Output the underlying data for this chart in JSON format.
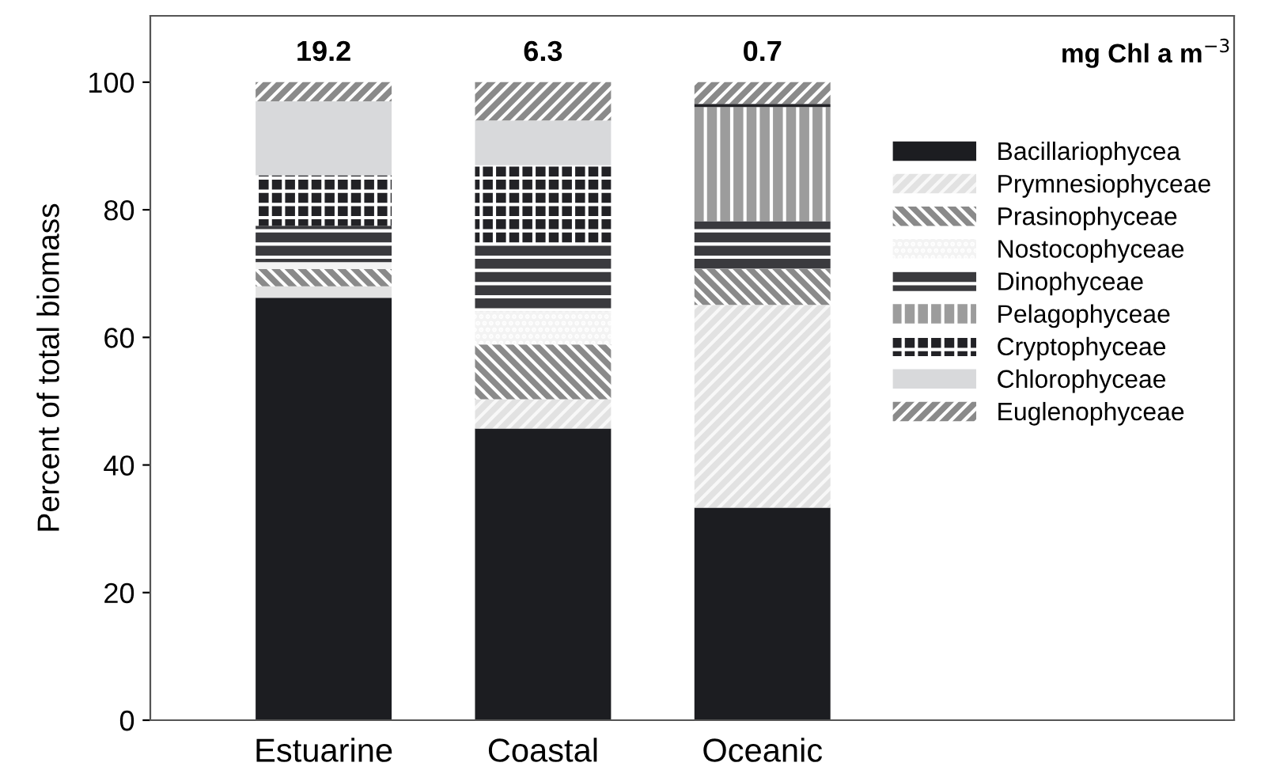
{
  "chart_data": {
    "type": "bar",
    "stacked": true,
    "ylabel": "Percent of total biomass",
    "categories": [
      "Estuarine",
      "Coastal",
      "Oceanic"
    ],
    "series": [
      {
        "name": "Bacillariophycea",
        "color": "#1c1d21",
        "values": [
          66.2,
          45.7,
          33.3
        ]
      },
      {
        "name": "Prymnesiophyceae",
        "color": "#e2e2e2",
        "values": [
          1.8,
          4.6,
          31.8
        ]
      },
      {
        "name": "Prasinophyceae",
        "color": "#8a8a8a",
        "values": [
          2.7,
          8.6,
          5.6
        ]
      },
      {
        "name": "Nostocophyceae",
        "color": "#f3f3f3",
        "values": [
          1.1,
          5.2,
          0
        ]
      },
      {
        "name": "Dinophyceae",
        "color": "#3a3a3e",
        "values": [
          5.7,
          10.5,
          7.5
        ]
      },
      {
        "name": "Pelagophyceae",
        "color": "#9c9c9c",
        "values": [
          0,
          0,
          17.9
        ]
      },
      {
        "name": "Cryptophyceae",
        "color": "#222226",
        "values": [
          7.9,
          12.4,
          0.5
        ]
      },
      {
        "name": "Chlorophyceae",
        "color": "#d8d9db",
        "values": [
          11.6,
          7.0,
          0
        ]
      },
      {
        "name": "Euglenophyceae",
        "color": "#8a8a8a",
        "values": [
          3.0,
          6.0,
          3.4
        ]
      }
    ],
    "ylim": [
      0,
      110.4
    ],
    "yticks": [
      0,
      20,
      40,
      60,
      80,
      100
    ],
    "grid": false,
    "legend": "right",
    "annotations": [
      "19.2",
      "6.3",
      "0.7",
      "mg Chl a m$^{−3}$"
    ]
  }
}
